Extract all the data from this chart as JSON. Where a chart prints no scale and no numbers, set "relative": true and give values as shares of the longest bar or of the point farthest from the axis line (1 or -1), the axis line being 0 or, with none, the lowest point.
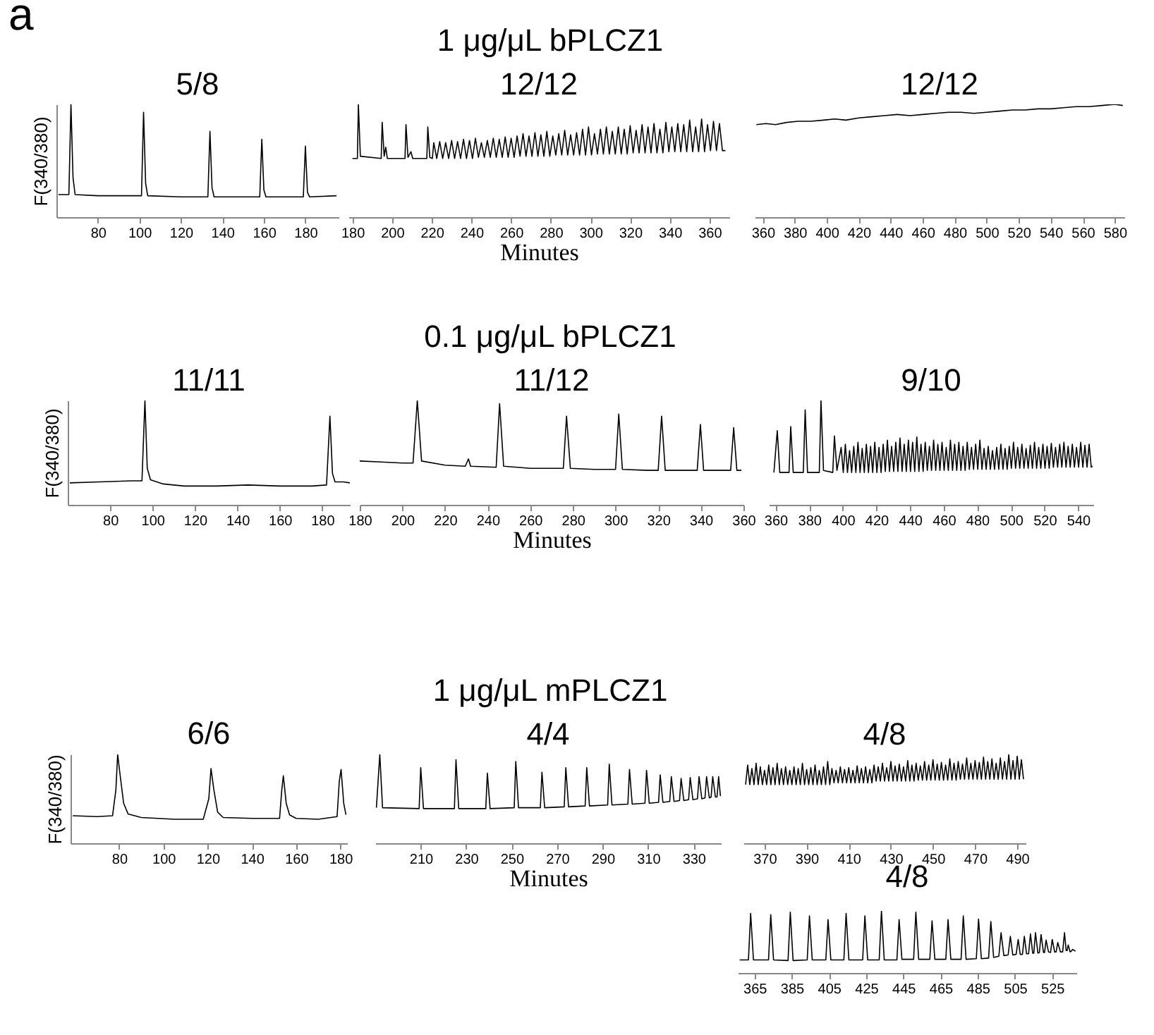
{
  "chart_data": [
    {
      "type": "line",
      "title": "5/8",
      "ylabel": "F(340/380)",
      "annotations": [
        "a",
        "1 μg/μL bPLCZ1"
      ],
      "relative": true,
      "xlim": [
        60,
        196
      ],
      "xticks": [
        80,
        100,
        120,
        140,
        160,
        180
      ],
      "series": [
        {
          "color": "#000000",
          "x": [
            61,
            66,
            67,
            68,
            69,
            80,
            95,
            101,
            102,
            103,
            104,
            120,
            133,
            134,
            135,
            136,
            150,
            158,
            159,
            160,
            161,
            170,
            179,
            180,
            181,
            182,
            195
          ],
          "values": [
            0.2,
            0.2,
            1,
            0.35,
            0.2,
            0.19,
            0.19,
            0.19,
            0.93,
            0.3,
            0.19,
            0.18,
            0.18,
            0.76,
            0.26,
            0.18,
            0.18,
            0.18,
            0.69,
            0.24,
            0.18,
            0.18,
            0.18,
            0.63,
            0.22,
            0.18,
            0.19
          ]
        }
      ]
    },
    {
      "type": "line",
      "title": "12/12",
      "xlabel": "Minutes",
      "relative": true,
      "xlim": [
        178,
        370
      ],
      "xticks": [
        180,
        200,
        220,
        240,
        260,
        280,
        300,
        320,
        340,
        360
      ],
      "series": [
        {
          "color": "#000000",
          "x": [
            180,
            182.5,
            183,
            184,
            194.5,
            195,
            196,
            196.8,
            197.6,
            206.5,
            207,
            208,
            209.5,
            210.4,
            217.5,
            218,
            219,
            220.3,
            221,
            222.5,
            224,
            225.5,
            227,
            228.5,
            230,
            231.5,
            233,
            234.5,
            236,
            237.5,
            239,
            240.5,
            242,
            243.5,
            245,
            246.5,
            248,
            249.5,
            251,
            252.5,
            254,
            255.5,
            257,
            258.5,
            260,
            261.5,
            263,
            264.5,
            266,
            267.5,
            269,
            270.5,
            272,
            273.5,
            275,
            276.5,
            278,
            279.5,
            281,
            282.5,
            284,
            285.5,
            287,
            288.5,
            290,
            291.5,
            293,
            294.5,
            296,
            297.5,
            299,
            300.5,
            302,
            303.5,
            305,
            306.5,
            308,
            309.5,
            311,
            312.5,
            314,
            315.5,
            317,
            318.5,
            320,
            321.5,
            323,
            324.5,
            326,
            327.5,
            329,
            330.5,
            332,
            333.5,
            335,
            336.5,
            338,
            339.5,
            341,
            342.5,
            344,
            345.5,
            347,
            348.5,
            350,
            351.5,
            353,
            354.5,
            356,
            357.5,
            359,
            360.5,
            362,
            363.5,
            365,
            366.5,
            368
          ],
          "values": [
            0.52,
            0.52,
            1,
            0.54,
            0.52,
            0.84,
            0.54,
            0.62,
            0.52,
            0.52,
            0.82,
            0.53,
            0.58,
            0.52,
            0.52,
            0.8,
            0.53,
            0.52,
            0.66,
            0.52,
            0.67,
            0.52,
            0.66,
            0.52,
            0.68,
            0.52,
            0.67,
            0.52,
            0.69,
            0.52,
            0.68,
            0.52,
            0.7,
            0.53,
            0.66,
            0.53,
            0.68,
            0.53,
            0.7,
            0.53,
            0.69,
            0.53,
            0.71,
            0.53,
            0.7,
            0.53,
            0.72,
            0.54,
            0.74,
            0.54,
            0.72,
            0.54,
            0.75,
            0.54,
            0.73,
            0.54,
            0.76,
            0.54,
            0.72,
            0.55,
            0.74,
            0.55,
            0.77,
            0.55,
            0.73,
            0.55,
            0.75,
            0.55,
            0.78,
            0.55,
            0.8,
            0.55,
            0.74,
            0.56,
            0.78,
            0.56,
            0.8,
            0.56,
            0.76,
            0.56,
            0.8,
            0.56,
            0.78,
            0.56,
            0.81,
            0.57,
            0.77,
            0.57,
            0.82,
            0.57,
            0.8,
            0.57,
            0.83,
            0.57,
            0.78,
            0.57,
            0.84,
            0.58,
            0.8,
            0.58,
            0.83,
            0.58,
            0.82,
            0.58,
            0.86,
            0.58,
            0.8,
            0.58,
            0.87,
            0.58,
            0.82,
            0.59,
            0.85,
            0.59,
            0.83,
            0.59,
            0.59
          ]
        }
      ]
    },
    {
      "type": "line",
      "title": "12/12",
      "relative": true,
      "xlim": [
        355,
        586
      ],
      "xticks": [
        360,
        380,
        400,
        420,
        440,
        460,
        480,
        500,
        520,
        540,
        560,
        580
      ],
      "series": [
        {
          "color": "#000000",
          "x": [
            356,
            362,
            368,
            375,
            382,
            390,
            398,
            405,
            412,
            420,
            428,
            436,
            444,
            452,
            460,
            468,
            476,
            484,
            492,
            500,
            508,
            516,
            524,
            532,
            540,
            548,
            556,
            564,
            572,
            580,
            585
          ],
          "values": [
            0.82,
            0.83,
            0.82,
            0.84,
            0.85,
            0.85,
            0.86,
            0.87,
            0.86,
            0.88,
            0.89,
            0.9,
            0.91,
            0.9,
            0.91,
            0.92,
            0.93,
            0.93,
            0.92,
            0.93,
            0.94,
            0.95,
            0.95,
            0.96,
            0.96,
            0.97,
            0.98,
            0.98,
            0.99,
            1,
            0.99
          ]
        }
      ]
    },
    {
      "type": "line",
      "title": "11/11",
      "ylabel": "F(340/380)",
      "annotations": [
        "0.1 μg/μL bPLCZ1"
      ],
      "relative": true,
      "xlim": [
        60,
        193
      ],
      "xticks": [
        80,
        100,
        120,
        140,
        160,
        180
      ],
      "series": [
        {
          "color": "#000000",
          "x": [
            61,
            75,
            90,
            95,
            96.4,
            97.5,
            99,
            105,
            115,
            130,
            145,
            160,
            175,
            182,
            183.6,
            184.8,
            186,
            190,
            193
          ],
          "values": [
            0.21,
            0.22,
            0.23,
            0.23,
            1,
            0.35,
            0.24,
            0.2,
            0.18,
            0.18,
            0.19,
            0.18,
            0.18,
            0.19,
            0.85,
            0.3,
            0.22,
            0.22,
            0.21
          ]
        }
      ]
    },
    {
      "type": "line",
      "title": "11/12",
      "xlabel": "Minutes",
      "relative": true,
      "xlim": [
        180,
        360
      ],
      "xticks": [
        180,
        200,
        220,
        240,
        260,
        280,
        300,
        320,
        340,
        360
      ],
      "series": [
        {
          "color": "#000000",
          "x": [
            180,
            190,
            200,
            205,
            207,
            209,
            220,
            229.5,
            231,
            232,
            244,
            245.6,
            247.5,
            260,
            275.5,
            277,
            278.8,
            290,
            300,
            301.5,
            303.2,
            315,
            320,
            321.6,
            323.3,
            330,
            338.3,
            339.8,
            341.3,
            348,
            354,
            355.4,
            356.9,
            359
          ],
          "values": [
            0.42,
            0.41,
            0.4,
            0.4,
            1,
            0.42,
            0.38,
            0.37,
            0.44,
            0.37,
            0.36,
            0.97,
            0.37,
            0.35,
            0.35,
            0.85,
            0.35,
            0.34,
            0.34,
            0.87,
            0.34,
            0.33,
            0.33,
            0.85,
            0.33,
            0.33,
            0.33,
            0.77,
            0.33,
            0.33,
            0.33,
            0.74,
            0.33,
            0.33
          ]
        }
      ]
    },
    {
      "type": "line",
      "title": "9/10",
      "relative": true,
      "xlim": [
        356,
        549
      ],
      "xticks": [
        360,
        380,
        400,
        420,
        440,
        460,
        480,
        500,
        520,
        540
      ],
      "series": [
        {
          "color": "#000000",
          "x": [
            359,
            361,
            362.5,
            368,
            369,
            370.5,
            376.5,
            377.6,
            379,
            386,
            387,
            388.5,
            394,
            395,
            396.5,
            399,
            400.25,
            401.5,
            402.75,
            404,
            405.25,
            406.5,
            407.75,
            409,
            410.25,
            411.5,
            412.75,
            414,
            415.25,
            416.5,
            417.75,
            419,
            420.25,
            421.5,
            422.75,
            424,
            425.25,
            426.5,
            427.75,
            429,
            430.25,
            431.5,
            432.75,
            434,
            435.25,
            436.5,
            437.75,
            439,
            440.25,
            441.5,
            442.75,
            444,
            445.25,
            446.5,
            447.75,
            449,
            450.25,
            451.5,
            452.75,
            454,
            455.25,
            456.5,
            457.75,
            459,
            460.25,
            461.5,
            462.75,
            464,
            465.25,
            466.5,
            467.75,
            469,
            470.25,
            471.5,
            472.75,
            474,
            475.25,
            476.5,
            477.75,
            479,
            480.25,
            481.5,
            482.75,
            484,
            485.25,
            486.5,
            487.75,
            489,
            490.25,
            491.5,
            492.75,
            494,
            495.25,
            496.5,
            497.75,
            499,
            500.25,
            501.5,
            502.75,
            504,
            505.25,
            506.5,
            507.75,
            509,
            510.25,
            511.5,
            512.75,
            514,
            515.25,
            516.5,
            517.75,
            519,
            520.25,
            521.5,
            522.75,
            524,
            525.25,
            526.5,
            527.75,
            529,
            530.25,
            531.5,
            532.75,
            534,
            535.25,
            536.5,
            537.75,
            539,
            540.25,
            541.5,
            542.75,
            544,
            545.25,
            546.5,
            547.75,
            548.5
          ],
          "values": [
            0.31,
            0.71,
            0.31,
            0.31,
            0.75,
            0.31,
            0.31,
            0.91,
            0.31,
            0.31,
            1,
            0.33,
            0.31,
            0.66,
            0.33,
            0.55,
            0.31,
            0.58,
            0.31,
            0.52,
            0.31,
            0.56,
            0.31,
            0.6,
            0.31,
            0.54,
            0.31,
            0.58,
            0.31,
            0.56,
            0.31,
            0.6,
            0.31,
            0.55,
            0.31,
            0.58,
            0.32,
            0.62,
            0.32,
            0.56,
            0.32,
            0.6,
            0.32,
            0.64,
            0.32,
            0.58,
            0.32,
            0.62,
            0.32,
            0.6,
            0.32,
            0.65,
            0.32,
            0.58,
            0.32,
            0.6,
            0.33,
            0.56,
            0.33,
            0.62,
            0.33,
            0.58,
            0.33,
            0.6,
            0.33,
            0.55,
            0.33,
            0.62,
            0.33,
            0.58,
            0.33,
            0.6,
            0.33,
            0.56,
            0.33,
            0.6,
            0.34,
            0.55,
            0.34,
            0.58,
            0.34,
            0.62,
            0.34,
            0.54,
            0.34,
            0.56,
            0.34,
            0.52,
            0.34,
            0.55,
            0.34,
            0.58,
            0.34,
            0.54,
            0.34,
            0.56,
            0.35,
            0.6,
            0.35,
            0.55,
            0.35,
            0.58,
            0.35,
            0.54,
            0.35,
            0.57,
            0.35,
            0.6,
            0.35,
            0.55,
            0.35,
            0.58,
            0.35,
            0.56,
            0.35,
            0.59,
            0.36,
            0.55,
            0.36,
            0.58,
            0.36,
            0.6,
            0.36,
            0.56,
            0.36,
            0.58,
            0.36,
            0.55,
            0.36,
            0.6,
            0.36,
            0.57,
            0.36,
            0.58,
            0.36,
            0.37
          ]
        }
      ]
    },
    {
      "type": "line",
      "title": "6/6",
      "ylabel": "F(340/380)",
      "annotations": [
        "1 μg/μL mPLCZ1"
      ],
      "relative": true,
      "xlim": [
        58,
        183
      ],
      "xticks": [
        80,
        100,
        120,
        140,
        160,
        180
      ],
      "series": [
        {
          "color": "#000000",
          "x": [
            59,
            70,
            77,
            78.5,
            79.3,
            80.5,
            82,
            84,
            90,
            105,
            118,
            120.5,
            121.5,
            122.8,
            124.5,
            127,
            140,
            152.5,
            153.5,
            154.2,
            155.5,
            157,
            160,
            170,
            178.5,
            179.5,
            180.3,
            181.5,
            182.5
          ],
          "values": [
            0.31,
            0.3,
            0.31,
            0.6,
            1,
            0.75,
            0.45,
            0.33,
            0.29,
            0.27,
            0.27,
            0.5,
            0.84,
            0.6,
            0.35,
            0.29,
            0.28,
            0.28,
            0.6,
            0.76,
            0.45,
            0.32,
            0.28,
            0.27,
            0.3,
            0.7,
            0.83,
            0.45,
            0.32
          ]
        }
      ]
    },
    {
      "type": "line",
      "title": "4/4",
      "xlabel": "Minutes",
      "relative": true,
      "xlim": [
        190,
        342
      ],
      "xticks": [
        210,
        230,
        250,
        270,
        290,
        310,
        330
      ],
      "series": [
        {
          "color": "#000000",
          "x": [
            190.5,
            192,
            193.2,
            209.3,
            210,
            211.2,
            224.8,
            225.5,
            226.7,
            238.6,
            239.3,
            240.5,
            251.1,
            251.8,
            253,
            262.6,
            263.3,
            264.5,
            273.1,
            273.8,
            275,
            282.3,
            283,
            284.2,
            292.2,
            292.9,
            294.1,
            301.1,
            301.8,
            303,
            308.6,
            309.3,
            310.5,
            314.6,
            315.3,
            316.5,
            319.5,
            320.2,
            321.4,
            323.8,
            324.5,
            325.7,
            327.8,
            328.5,
            329.7,
            331.7,
            332.4,
            333.6,
            335,
            335.7,
            336.9,
            337.7,
            338.4,
            339.6,
            340.3,
            341,
            341.8
          ],
          "values": [
            0.4,
            1,
            0.4,
            0.39,
            0.85,
            0.39,
            0.39,
            0.94,
            0.39,
            0.39,
            0.79,
            0.39,
            0.4,
            0.92,
            0.4,
            0.4,
            0.8,
            0.4,
            0.41,
            0.85,
            0.41,
            0.42,
            0.85,
            0.42,
            0.43,
            0.89,
            0.43,
            0.44,
            0.83,
            0.44,
            0.45,
            0.82,
            0.45,
            0.46,
            0.77,
            0.46,
            0.47,
            0.75,
            0.47,
            0.48,
            0.73,
            0.48,
            0.49,
            0.74,
            0.49,
            0.5,
            0.75,
            0.5,
            0.51,
            0.75,
            0.51,
            0.52,
            0.75,
            0.52,
            0.52,
            0.75,
            0.53
          ]
        }
      ]
    },
    {
      "type": "line",
      "title": "4/8",
      "relative": true,
      "xlim": [
        360,
        494
      ],
      "xticks": [
        370,
        390,
        410,
        430,
        450,
        470,
        490
      ],
      "series": [
        {
          "color": "#000000",
          "x": [
            361,
            362,
            363,
            364,
            365,
            366,
            367,
            368,
            369,
            370,
            371,
            372,
            373,
            374,
            375,
            376,
            377,
            378,
            379,
            380,
            381,
            382,
            383,
            384,
            385,
            386,
            387,
            388,
            389,
            390,
            391,
            392,
            393,
            394,
            395,
            396,
            397,
            398,
            399,
            400,
            401,
            402,
            403,
            404,
            405,
            406,
            407,
            408,
            409,
            410,
            411,
            412,
            413,
            414,
            415,
            416,
            417,
            418,
            419,
            420,
            421,
            422,
            423,
            424,
            425,
            426,
            427,
            428,
            429,
            430,
            431,
            432,
            433,
            434,
            435,
            436,
            437,
            438,
            439,
            440,
            441,
            442,
            443,
            444,
            445,
            446,
            447,
            448,
            449,
            450,
            451,
            452,
            453,
            454,
            455,
            456,
            457,
            458,
            459,
            460,
            461,
            462,
            463,
            464,
            465,
            466,
            467,
            468,
            469,
            470,
            471,
            472,
            473,
            474,
            475,
            476,
            477,
            478,
            479,
            480,
            481,
            482,
            483,
            484,
            485,
            486,
            487,
            488,
            489,
            490,
            491,
            492,
            493
          ],
          "values": [
            0.66,
            0.88,
            0.66,
            0.84,
            0.66,
            0.9,
            0.66,
            0.86,
            0.66,
            0.82,
            0.66,
            0.88,
            0.66,
            0.85,
            0.66,
            0.9,
            0.66,
            0.84,
            0.66,
            0.86,
            0.66,
            0.82,
            0.66,
            0.86,
            0.66,
            0.84,
            0.66,
            0.9,
            0.66,
            0.83,
            0.66,
            0.85,
            0.66,
            0.88,
            0.66,
            0.82,
            0.66,
            0.86,
            0.66,
            0.92,
            0.66,
            0.84,
            0.68,
            0.82,
            0.68,
            0.86,
            0.68,
            0.83,
            0.68,
            0.85,
            0.68,
            0.82,
            0.68,
            0.87,
            0.68,
            0.84,
            0.68,
            0.86,
            0.68,
            0.83,
            0.68,
            0.88,
            0.7,
            0.86,
            0.7,
            0.9,
            0.7,
            0.85,
            0.7,
            0.92,
            0.7,
            0.87,
            0.7,
            0.89,
            0.7,
            0.86,
            0.7,
            0.93,
            0.7,
            0.88,
            0.7,
            0.9,
            0.71,
            0.87,
            0.71,
            0.92,
            0.71,
            0.88,
            0.71,
            0.94,
            0.71,
            0.89,
            0.71,
            0.91,
            0.71,
            0.88,
            0.71,
            0.95,
            0.71,
            0.9,
            0.71,
            0.92,
            0.72,
            0.89,
            0.72,
            0.96,
            0.72,
            0.9,
            0.72,
            0.93,
            0.72,
            0.91,
            0.72,
            0.97,
            0.72,
            0.92,
            0.72,
            0.95,
            0.72,
            0.9,
            0.72,
            0.96,
            0.72,
            0.92,
            0.72,
            1,
            0.72,
            0.93,
            0.72,
            0.98,
            0.72,
            0.94,
            0.72
          ]
        }
      ]
    },
    {
      "type": "line",
      "title": "4/8",
      "relative": true,
      "xlim": [
        356,
        538
      ],
      "xticks": [
        365,
        385,
        405,
        425,
        445,
        465,
        485,
        505,
        525
      ],
      "series": [
        {
          "color": "#000000",
          "x": [
            357,
            361.7,
            362.9,
            364.4,
            372.5,
            373.7,
            375.2,
            383,
            384.2,
            385.7,
            393.3,
            394.5,
            396,
            403.3,
            404.5,
            406,
            413,
            414.2,
            415.7,
            423.1,
            424.3,
            425.8,
            432,
            433.2,
            434.7,
            441.5,
            442.7,
            444.2,
            450.5,
            451.7,
            453.2,
            459.2,
            460.4,
            461.9,
            467.8,
            469,
            470.5,
            476,
            477.2,
            478.7,
            484.2,
            485.4,
            486.9,
            490.8,
            492,
            493.5,
            496.3,
            497.5,
            499,
            501.3,
            502.5,
            503.8,
            505.6,
            506.7,
            507.8,
            509,
            510,
            511.2,
            512.3,
            513.3,
            514.5,
            515.1,
            516,
            517.3,
            518.1,
            519,
            520.3,
            520.9,
            521.7,
            523,
            524.1,
            525,
            526.3,
            527.1,
            528,
            529.4,
            530.6,
            531.6,
            532.5,
            533,
            533.6,
            534.6,
            535.2,
            536,
            537.5
          ],
          "values": [
            0.21,
            0.21,
            0.96,
            0.21,
            0.21,
            0.94,
            0.21,
            0.2,
            0.98,
            0.2,
            0.21,
            0.92,
            0.21,
            0.21,
            0.86,
            0.21,
            0.21,
            0.96,
            0.21,
            0.21,
            0.92,
            0.21,
            0.21,
            1,
            0.21,
            0.21,
            0.86,
            0.22,
            0.22,
            0.98,
            0.22,
            0.22,
            0.84,
            0.22,
            0.22,
            0.86,
            0.22,
            0.22,
            0.92,
            0.22,
            0.23,
            0.87,
            0.23,
            0.24,
            0.83,
            0.25,
            0.27,
            0.65,
            0.28,
            0.29,
            0.59,
            0.29,
            0.3,
            0.54,
            0.3,
            0.3,
            0.59,
            0.31,
            0.31,
            0.63,
            0.32,
            0.32,
            0.65,
            0.32,
            0.33,
            0.62,
            0.33,
            0.33,
            0.53,
            0.34,
            0.33,
            0.54,
            0.34,
            0.34,
            0.49,
            0.34,
            0.34,
            0.65,
            0.36,
            0.36,
            0.45,
            0.34,
            0.35,
            0.38,
            0.35
          ]
        }
      ]
    }
  ]
}
